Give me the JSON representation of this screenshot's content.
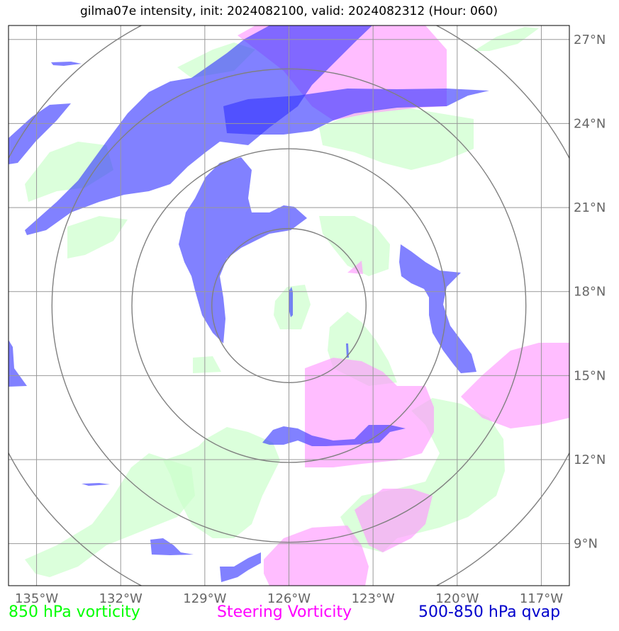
{
  "title": "gilma07e intensity, init: 2024082100, valid: 2024082312 (Hour: 060)",
  "map": {
    "lon_range": [
      -136.0,
      -116.0
    ],
    "lat_range": [
      7.5,
      27.5
    ],
    "lon_ticks": [
      -135,
      -132,
      -129,
      -126,
      -123,
      -120,
      -117
    ],
    "lon_tick_labels": [
      "135°W",
      "132°W",
      "129°W",
      "126°W",
      "123°W",
      "120°W",
      "117°W"
    ],
    "lat_ticks": [
      9,
      12,
      15,
      18,
      21,
      24,
      27
    ],
    "lat_tick_labels": [
      "9°N",
      "12°N",
      "15°N",
      "18°N",
      "21°N",
      "24°N",
      "27°N"
    ],
    "grid": true,
    "storm_center": {
      "lon": -126.0,
      "lat": 17.5
    },
    "range_rings_deg": [
      2.75,
      5.6,
      8.45,
      11.3
    ]
  },
  "colors": {
    "vorticity_850": "#ccffcc",
    "steering_vorticity": "#ff99ff",
    "qvap_500_850": "#3333ff",
    "grid": "#999999",
    "rings": "#808080"
  },
  "legend": {
    "vorticity_850": {
      "label": "850 hPa vorticity",
      "color": "#00ff00"
    },
    "steering": {
      "label": "Steering Vorticity",
      "color": "#ff00ff"
    },
    "qvap": {
      "label": "500-850 hPa qvap",
      "color": "#0000cc"
    }
  }
}
